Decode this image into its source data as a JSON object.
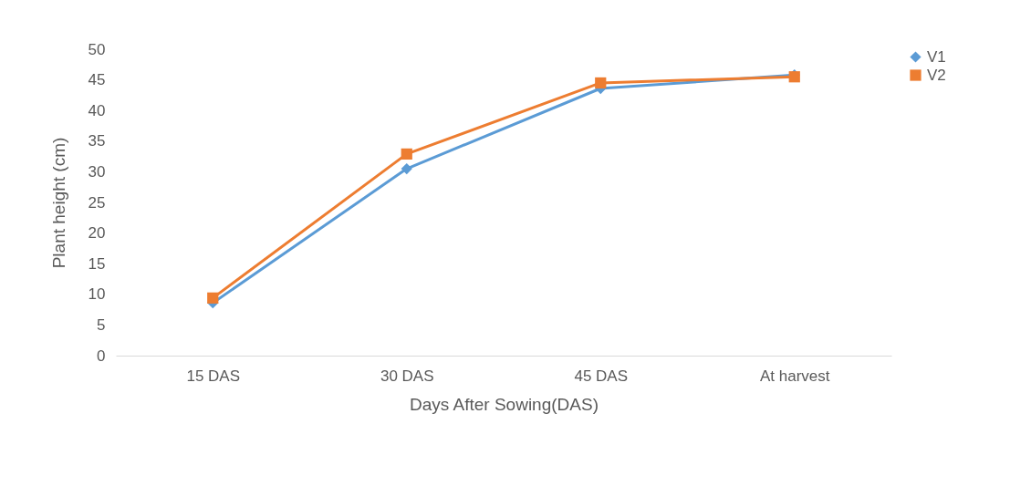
{
  "chart_data": {
    "type": "line",
    "xlabel": "Days After Sowing(DAS)",
    "ylabel": "Plant height (cm)",
    "categories": [
      "15 DAS",
      "30 DAS",
      "45 DAS",
      "At harvest"
    ],
    "series": [
      {
        "name": "V1",
        "color": "#5b9bd5",
        "marker": "diamond",
        "values": [
          8.6,
          30.5,
          43.6,
          45.8
        ]
      },
      {
        "name": "V2",
        "color": "#ed7d31",
        "marker": "square",
        "values": [
          9.4,
          32.9,
          44.5,
          45.5
        ]
      }
    ],
    "ylim": [
      0,
      50
    ],
    "yticks": [
      0,
      5,
      10,
      15,
      20,
      25,
      30,
      35,
      40,
      45,
      50
    ],
    "grid": false,
    "legend": "right"
  }
}
